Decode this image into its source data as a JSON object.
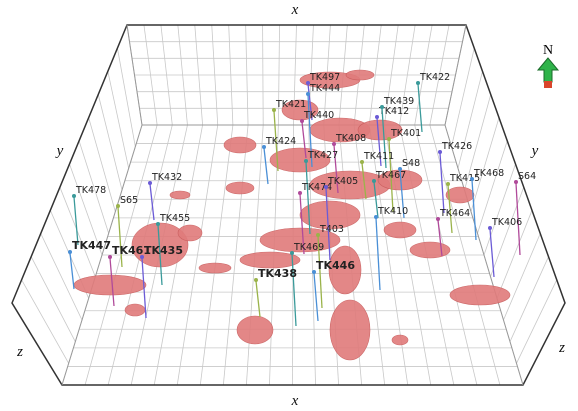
{
  "axes": {
    "x_top": "x",
    "x_bottom": "x",
    "y_left": "y",
    "y_right": "y",
    "z_left": "z",
    "z_right": "z"
  },
  "compass": "N",
  "labels": [
    {
      "text": "TK497"
    },
    {
      "text": "TK422"
    },
    {
      "text": "TK421"
    },
    {
      "text": "TK444"
    },
    {
      "text": "TK440"
    },
    {
      "text": "TK412"
    },
    {
      "text": "TK439"
    },
    {
      "text": "TK401"
    },
    {
      "text": "TK424"
    },
    {
      "text": "TK408"
    },
    {
      "text": "TK426"
    },
    {
      "text": "TK427"
    },
    {
      "text": "TK411"
    },
    {
      "text": "S48"
    },
    {
      "text": "TK474"
    },
    {
      "text": "TK405"
    },
    {
      "text": "TK467"
    },
    {
      "text": "TK415"
    },
    {
      "text": "TK468"
    },
    {
      "text": "S64"
    },
    {
      "text": "TK432"
    },
    {
      "text": "TK478"
    },
    {
      "text": "S65"
    },
    {
      "text": "TK410"
    },
    {
      "text": "TK464"
    },
    {
      "text": "TK406"
    },
    {
      "text": "TK455"
    },
    {
      "text": "T403"
    },
    {
      "text": "TK447"
    },
    {
      "text": "TK461"
    },
    {
      "text": "TK435"
    },
    {
      "text": "TK469"
    },
    {
      "text": "TK438"
    },
    {
      "text": "TK446"
    }
  ]
}
